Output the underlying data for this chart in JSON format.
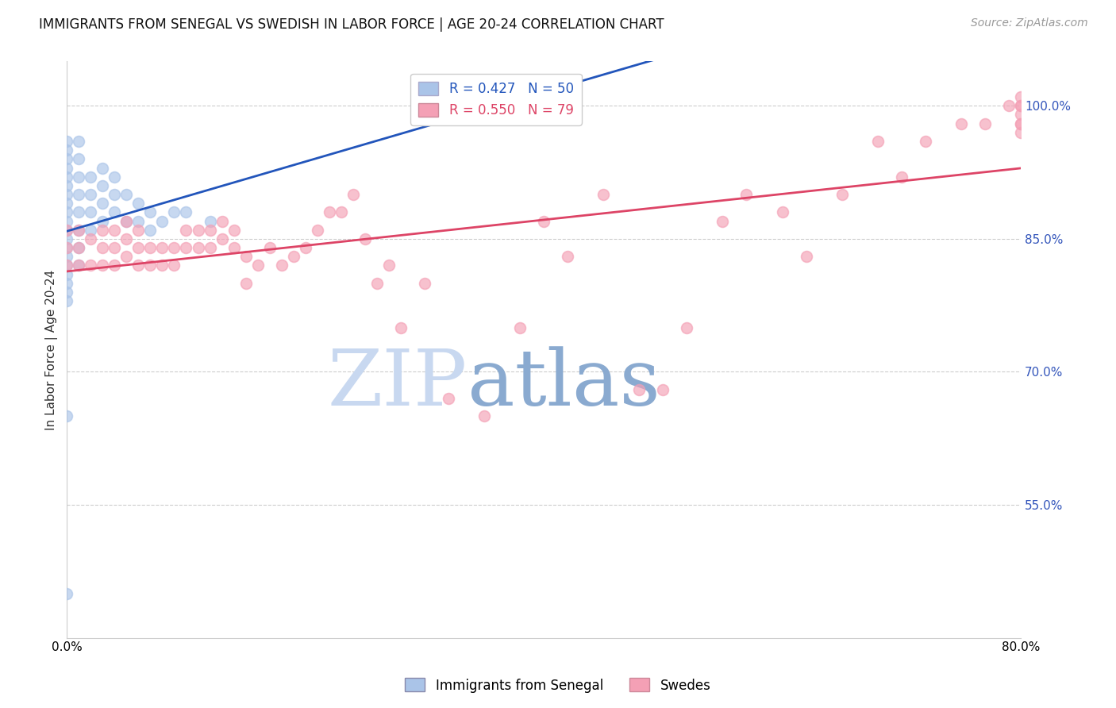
{
  "title": "IMMIGRANTS FROM SENEGAL VS SWEDISH IN LABOR FORCE | AGE 20-24 CORRELATION CHART",
  "source": "Source: ZipAtlas.com",
  "ylabel": "In Labor Force | Age 20-24",
  "xlim": [
    0.0,
    0.8
  ],
  "ylim": [
    0.4,
    1.05
  ],
  "xticks": [
    0.0,
    0.1,
    0.2,
    0.3,
    0.4,
    0.5,
    0.6,
    0.7,
    0.8
  ],
  "xticklabels": [
    "0.0%",
    "",
    "",
    "",
    "",
    "",
    "",
    "",
    "80.0%"
  ],
  "right_yticks": [
    0.55,
    0.7,
    0.85,
    1.0
  ],
  "right_yticklabels": [
    "55.0%",
    "70.0%",
    "85.0%",
    "100.0%"
  ],
  "blue_R": 0.427,
  "blue_N": 50,
  "pink_R": 0.55,
  "pink_N": 79,
  "legend_blue_label": "Immigrants from Senegal",
  "legend_pink_label": "Swedes",
  "blue_color": "#aac4e8",
  "pink_color": "#f4a0b5",
  "blue_line_color": "#2255bb",
  "pink_line_color": "#dd4466",
  "background_color": "#ffffff",
  "title_color": "#111111",
  "source_color": "#999999",
  "right_tick_color": "#3355bb",
  "grid_color": "#cccccc",
  "blue_x": [
    0.0,
    0.0,
    0.0,
    0.0,
    0.0,
    0.0,
    0.0,
    0.0,
    0.0,
    0.0,
    0.0,
    0.0,
    0.0,
    0.0,
    0.0,
    0.0,
    0.0,
    0.0,
    0.0,
    0.0,
    0.0,
    0.01,
    0.01,
    0.01,
    0.01,
    0.01,
    0.01,
    0.01,
    0.01,
    0.02,
    0.02,
    0.02,
    0.02,
    0.03,
    0.03,
    0.03,
    0.03,
    0.04,
    0.04,
    0.04,
    0.05,
    0.05,
    0.06,
    0.06,
    0.07,
    0.07,
    0.08,
    0.09,
    0.1,
    0.12
  ],
  "blue_y": [
    0.78,
    0.79,
    0.8,
    0.81,
    0.82,
    0.83,
    0.84,
    0.85,
    0.86,
    0.87,
    0.88,
    0.89,
    0.9,
    0.91,
    0.92,
    0.93,
    0.94,
    0.95,
    0.96,
    0.45,
    0.65,
    0.82,
    0.84,
    0.86,
    0.88,
    0.9,
    0.92,
    0.94,
    0.96,
    0.86,
    0.88,
    0.9,
    0.92,
    0.87,
    0.89,
    0.91,
    0.93,
    0.88,
    0.9,
    0.92,
    0.87,
    0.9,
    0.87,
    0.89,
    0.86,
    0.88,
    0.87,
    0.88,
    0.88,
    0.87
  ],
  "pink_x": [
    0.0,
    0.0,
    0.0,
    0.01,
    0.01,
    0.01,
    0.02,
    0.02,
    0.03,
    0.03,
    0.03,
    0.04,
    0.04,
    0.04,
    0.05,
    0.05,
    0.05,
    0.06,
    0.06,
    0.06,
    0.07,
    0.07,
    0.08,
    0.08,
    0.09,
    0.09,
    0.1,
    0.1,
    0.11,
    0.11,
    0.12,
    0.12,
    0.13,
    0.13,
    0.14,
    0.14,
    0.15,
    0.15,
    0.16,
    0.17,
    0.18,
    0.19,
    0.2,
    0.21,
    0.22,
    0.23,
    0.24,
    0.25,
    0.26,
    0.27,
    0.28,
    0.3,
    0.32,
    0.35,
    0.38,
    0.4,
    0.42,
    0.45,
    0.48,
    0.5,
    0.52,
    0.55,
    0.57,
    0.6,
    0.62,
    0.65,
    0.68,
    0.7,
    0.72,
    0.75,
    0.77,
    0.79,
    0.8,
    0.8,
    0.8,
    0.8,
    0.8,
    0.8,
    0.8
  ],
  "pink_y": [
    0.82,
    0.84,
    0.86,
    0.82,
    0.84,
    0.86,
    0.82,
    0.85,
    0.82,
    0.84,
    0.86,
    0.82,
    0.84,
    0.86,
    0.83,
    0.85,
    0.87,
    0.82,
    0.84,
    0.86,
    0.82,
    0.84,
    0.82,
    0.84,
    0.82,
    0.84,
    0.84,
    0.86,
    0.84,
    0.86,
    0.84,
    0.86,
    0.85,
    0.87,
    0.84,
    0.86,
    0.8,
    0.83,
    0.82,
    0.84,
    0.82,
    0.83,
    0.84,
    0.86,
    0.88,
    0.88,
    0.9,
    0.85,
    0.8,
    0.82,
    0.75,
    0.8,
    0.67,
    0.65,
    0.75,
    0.87,
    0.83,
    0.9,
    0.68,
    0.68,
    0.75,
    0.87,
    0.9,
    0.88,
    0.83,
    0.9,
    0.96,
    0.92,
    0.96,
    0.98,
    0.98,
    1.0,
    0.97,
    0.99,
    1.0,
    0.98,
    0.98,
    1.0,
    1.01
  ],
  "marker_size": 100,
  "title_fontsize": 12,
  "axis_label_fontsize": 11,
  "tick_fontsize": 11,
  "legend_fontsize": 12,
  "source_fontsize": 10,
  "watermark_zip_color": "#c8d8f0",
  "watermark_atlas_color": "#8aaad0",
  "watermark_fontsize": 72
}
